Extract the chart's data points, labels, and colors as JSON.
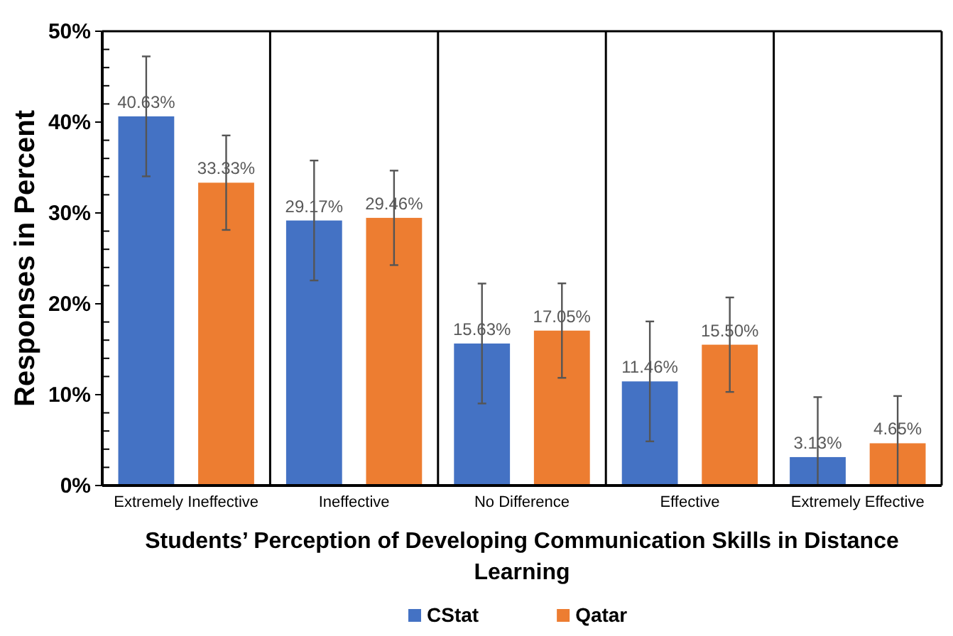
{
  "chart_data": {
    "type": "bar",
    "xlabel": "Students’ Perception of Developing Communication Skills in Distance Learning",
    "ylabel": "Responses in Percent",
    "categories": [
      "Extremely Ineffective",
      "Ineffective",
      "No Difference",
      "Effective",
      "Extremely Effective"
    ],
    "series": [
      {
        "name": "CStat",
        "color": "#4472c4",
        "values": [
          40.63,
          29.17,
          15.63,
          11.46,
          3.13
        ],
        "errors": [
          6.6,
          6.6,
          6.6,
          6.6,
          [
            0,
            9.73
          ]
        ],
        "value_labels": [
          "40.63%",
          "29.17%",
          "15.63%",
          "11.46%",
          "3.13%"
        ]
      },
      {
        "name": "Qatar",
        "color": "#ed7d31",
        "values": [
          33.33,
          29.46,
          17.05,
          15.5,
          4.65
        ],
        "errors": [
          5.2,
          5.2,
          5.2,
          5.2,
          [
            0,
            9.85
          ]
        ],
        "value_labels": [
          "33.33%",
          "29.46%",
          "17.05%",
          "15.50%",
          "4.65%"
        ]
      }
    ],
    "ylim": [
      0,
      50
    ],
    "yticks": [
      {
        "value": 0,
        "label": "0%"
      },
      {
        "value": 2,
        "label": null
      },
      {
        "value": 4,
        "label": null
      },
      {
        "value": 6,
        "label": null
      },
      {
        "value": 8,
        "label": null
      },
      {
        "value": 10,
        "label": "10%"
      },
      {
        "value": 12,
        "label": null
      },
      {
        "value": 14,
        "label": null
      },
      {
        "value": 16,
        "label": null
      },
      {
        "value": 18,
        "label": null
      },
      {
        "value": 20,
        "label": "20%"
      },
      {
        "value": 22,
        "label": null
      },
      {
        "value": 24,
        "label": null
      },
      {
        "value": 26,
        "label": null
      },
      {
        "value": 28,
        "label": null
      },
      {
        "value": 30,
        "label": "30%"
      },
      {
        "value": 32,
        "label": null
      },
      {
        "value": 34,
        "label": null
      },
      {
        "value": 36,
        "label": null
      },
      {
        "value": 38,
        "label": null
      },
      {
        "value": 40,
        "label": "40%"
      },
      {
        "value": 42,
        "label": null
      },
      {
        "value": 44,
        "label": null
      },
      {
        "value": 46,
        "label": null
      },
      {
        "value": 48,
        "label": null
      },
      {
        "value": 50,
        "label": "50%"
      }
    ],
    "grid": false,
    "legend": "bottom"
  }
}
